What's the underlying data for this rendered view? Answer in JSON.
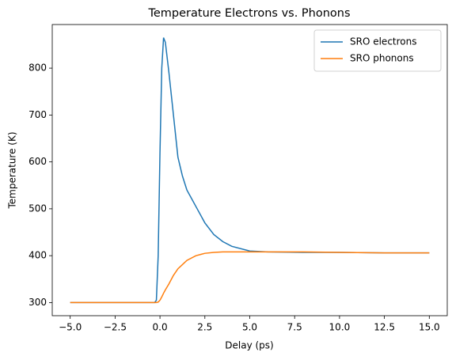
{
  "chart_data": {
    "type": "line",
    "title": "Temperature Electrons vs. Phonons",
    "x_label": "Delay (ps)",
    "y_label": "Temperature (K)",
    "x": [
      -5,
      -0.3,
      -0.2,
      -0.1,
      0,
      0.1,
      0.2,
      0.3,
      0.5,
      0.75,
      1,
      1.25,
      1.5,
      2,
      2.5,
      3,
      3.5,
      4,
      5,
      6,
      8,
      10,
      12.5,
      15
    ],
    "series": [
      {
        "name": "SRO electrons",
        "color": "#1f77b4",
        "values": [
          300,
          300,
          305,
          400,
          620,
          800,
          865,
          855,
          790,
          700,
          610,
          570,
          540,
          505,
          470,
          445,
          430,
          420,
          410,
          408,
          407,
          407,
          406,
          406
        ]
      },
      {
        "name": "SRO phonons",
        "color": "#ff7f0e",
        "values": [
          300,
          300,
          300,
          301,
          305,
          312,
          320,
          327,
          340,
          358,
          372,
          381,
          390,
          400,
          405,
          407,
          408,
          408,
          408,
          408,
          408,
          407,
          406,
          406
        ]
      }
    ],
    "xlim": [
      -6,
      16
    ],
    "xticks": [
      {
        "value": -5,
        "label": "−5.0"
      },
      {
        "value": -2.5,
        "label": "−2.5"
      },
      {
        "value": 0,
        "label": "0.0"
      },
      2.5,
      {
        "value": 5,
        "label": "5.0"
      },
      7.5,
      {
        "value": 10,
        "label": "10.0"
      },
      12.5,
      {
        "value": 15,
        "label": "15.0"
      }
    ],
    "ylim": [
      272,
      893
    ],
    "yticks": [
      300,
      400,
      500,
      600,
      700,
      800
    ],
    "legend": "upper right",
    "grid": false
  }
}
